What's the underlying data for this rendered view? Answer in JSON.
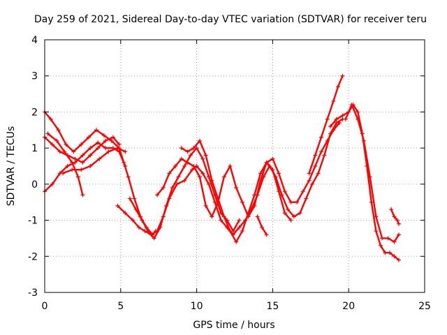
{
  "chart_data": {
    "type": "scatter",
    "title": "Day 259 of 2021, Sidereal Day-to-day VTEC variation (SDTVAR) for receiver teru",
    "xlabel": "GPS time / hours",
    "ylabel": "SDTVAR / TECUs",
    "xlim": [
      0,
      25
    ],
    "ylim": [
      -3,
      4
    ],
    "xticks": [
      "0",
      "5",
      "10",
      "15",
      "20",
      "25"
    ],
    "yticks": [
      "-3",
      "-2",
      "-1",
      "0",
      "1",
      "2",
      "3",
      "4"
    ],
    "grid": true,
    "marker": "+",
    "color": "#ff0000",
    "series": [
      {
        "name": "trace-1",
        "x": [
          0.0,
          0.4,
          0.9,
          1.4,
          1.9,
          2.4,
          2.9,
          3.4,
          3.9,
          4.4,
          4.9,
          5.2,
          5.5,
          5.9,
          6.3,
          6.7,
          7.1,
          7.3
        ],
        "y": [
          2.0,
          1.8,
          1.5,
          1.1,
          0.9,
          1.1,
          1.3,
          1.5,
          1.35,
          1.2,
          1.0,
          0.6,
          0.2,
          -0.4,
          -0.9,
          -1.2,
          -1.4,
          -1.3
        ]
      },
      {
        "name": "trace-2",
        "x": [
          0.0,
          0.5,
          1.0,
          1.5,
          2.0,
          2.5,
          3.0,
          3.5,
          4.0,
          4.5,
          4.9,
          5.3
        ],
        "y": [
          -0.2,
          0.0,
          0.3,
          0.5,
          0.6,
          0.8,
          1.0,
          1.15,
          1.0,
          1.0,
          0.9,
          0.5
        ]
      },
      {
        "name": "trace-3",
        "x": [
          0.0,
          0.5,
          1.0,
          1.5,
          2.0,
          2.5,
          3.0,
          3.5,
          4.0,
          4.5,
          4.9
        ],
        "y": [
          1.3,
          1.1,
          0.9,
          0.8,
          0.7,
          0.6,
          0.8,
          1.0,
          1.2,
          1.3,
          1.1
        ]
      },
      {
        "name": "trace-4",
        "x": [
          0.2,
          0.8,
          1.3,
          1.8,
          2.2,
          2.5
        ],
        "y": [
          1.4,
          1.2,
          0.9,
          0.6,
          0.2,
          -0.3
        ]
      },
      {
        "name": "trace-5",
        "x": [
          1.2,
          1.8,
          2.4,
          3.0,
          3.6,
          4.2,
          4.8,
          5.3
        ],
        "y": [
          0.3,
          0.4,
          0.4,
          0.5,
          0.7,
          0.9,
          1.0,
          0.9
        ]
      },
      {
        "name": "trace-6",
        "x": [
          4.8,
          5.3,
          5.8,
          6.2,
          6.6,
          7.0,
          7.4,
          7.8,
          8.2,
          8.7,
          9.2,
          9.7,
          10.0,
          10.4,
          10.8,
          11.2,
          11.6,
          12.0,
          12.4,
          12.8,
          13.2,
          13.6,
          14.0,
          14.4,
          14.8,
          15.2,
          15.6,
          16.0,
          16.4,
          16.8,
          17.2,
          17.6,
          18.0,
          18.4,
          18.8,
          19.2,
          19.6
        ],
        "y": [
          -0.6,
          -0.8,
          -1.0,
          -1.2,
          -1.3,
          -1.4,
          -1.3,
          -0.9,
          -0.4,
          0.0,
          0.1,
          0.4,
          0.5,
          0.3,
          0.0,
          -0.5,
          -1.0,
          -1.2,
          -1.4,
          -1.2,
          -1.0,
          -0.7,
          -0.3,
          0.2,
          0.5,
          0.2,
          -0.3,
          -0.7,
          -0.9,
          -0.8,
          -0.4,
          0.0,
          0.3,
          0.8,
          1.4,
          1.7,
          1.8
        ]
      },
      {
        "name": "trace-7",
        "x": [
          5.6,
          6.0,
          6.4,
          6.8,
          7.2,
          7.6,
          8.0,
          8.4,
          8.8,
          9.2,
          9.6,
          10.0,
          10.4,
          10.8,
          11.2,
          11.6,
          12.0,
          12.4,
          12.8
        ],
        "y": [
          -0.4,
          -0.7,
          -1.0,
          -1.3,
          -1.5,
          -1.2,
          -0.6,
          -0.1,
          0.2,
          0.5,
          0.8,
          1.0,
          0.7,
          0.2,
          -0.3,
          -0.8,
          -1.0,
          -1.3,
          -1.0
        ]
      },
      {
        "name": "trace-8",
        "x": [
          7.4,
          7.8,
          8.2,
          8.6,
          9.0,
          9.4,
          9.8,
          10.2,
          10.6,
          11.0,
          11.4,
          11.8,
          12.2,
          12.6,
          13.0,
          13.4,
          13.8,
          14.2,
          14.6,
          15.0,
          15.4,
          15.8,
          16.2,
          16.6,
          17.0,
          17.4,
          17.8,
          18.2,
          18.6,
          19.0,
          19.4
        ],
        "y": [
          -0.3,
          -0.1,
          0.3,
          0.5,
          0.7,
          0.6,
          0.5,
          0.2,
          -0.6,
          -0.9,
          -0.5,
          0.2,
          0.5,
          -0.1,
          -0.5,
          -0.9,
          -0.6,
          0.1,
          0.6,
          0.7,
          0.3,
          -0.2,
          -0.5,
          -0.5,
          -0.2,
          0.1,
          0.5,
          0.9,
          1.2,
          1.5,
          1.7
        ]
      },
      {
        "name": "trace-9",
        "x": [
          9.0,
          9.4,
          9.8,
          10.2,
          10.6,
          11.0,
          11.4,
          11.8,
          12.2,
          12.6,
          13.0,
          13.4,
          13.8,
          14.2,
          14.6,
          15.0,
          15.4,
          15.8,
          16.2
        ],
        "y": [
          1.0,
          0.9,
          1.0,
          1.2,
          0.8,
          0.1,
          -0.4,
          -0.9,
          -1.3,
          -1.6,
          -1.3,
          -0.8,
          -0.3,
          0.3,
          0.6,
          0.4,
          -0.2,
          -0.8,
          -1.0
        ]
      },
      {
        "name": "trace-10",
        "x": [
          14.0,
          14.3,
          14.6
        ],
        "y": [
          -0.9,
          -1.2,
          -1.4
        ]
      },
      {
        "name": "trace-11",
        "x": [
          17.4,
          17.8,
          18.2,
          18.6,
          19.0,
          19.3,
          19.6
        ],
        "y": [
          0.3,
          0.8,
          1.3,
          1.8,
          2.3,
          2.7,
          3.0
        ]
      },
      {
        "name": "trace-12",
        "x": [
          18.8,
          19.2,
          19.6,
          20.0,
          20.3,
          20.6,
          20.9,
          21.2,
          21.5,
          21.8,
          22.1,
          22.4,
          22.7,
          23.0,
          23.3
        ],
        "y": [
          1.6,
          1.8,
          1.9,
          2.0,
          2.2,
          2.0,
          1.4,
          0.5,
          -0.5,
          -1.3,
          -1.7,
          -1.9,
          -1.9,
          -2.0,
          -2.1
        ]
      },
      {
        "name": "trace-13",
        "x": [
          19.8,
          20.2,
          20.6,
          21.0,
          21.4,
          21.8,
          22.2,
          22.6,
          23.0,
          23.3
        ],
        "y": [
          1.8,
          2.2,
          1.8,
          1.2,
          0.2,
          -0.9,
          -1.5,
          -1.5,
          -1.6,
          -1.4
        ]
      },
      {
        "name": "trace-14",
        "x": [
          22.8,
          23.0,
          23.2,
          23.3
        ],
        "y": [
          -0.7,
          -0.9,
          -1.0,
          -1.1
        ]
      }
    ]
  }
}
